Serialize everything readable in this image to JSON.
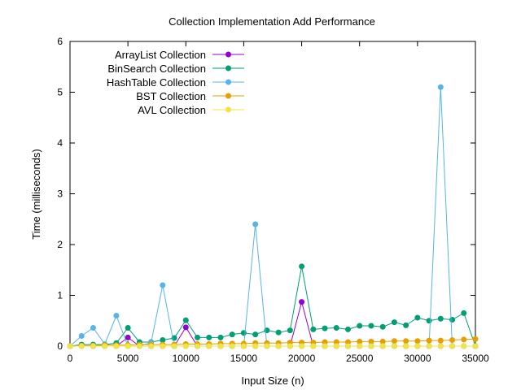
{
  "chart_data": {
    "type": "line",
    "title": "Collection Implementation Add Performance",
    "xlabel": "Input Size (n)",
    "ylabel": "Time (milliseconds)",
    "xlim": [
      0,
      35000
    ],
    "ylim": [
      0,
      6
    ],
    "xticks": [
      0,
      5000,
      10000,
      15000,
      20000,
      25000,
      30000,
      35000
    ],
    "yticks": [
      0,
      1,
      2,
      3,
      4,
      5,
      6
    ],
    "grid": false,
    "legend_position": "top-left",
    "x": [
      0,
      1000,
      2000,
      3000,
      4000,
      5000,
      6000,
      7000,
      8000,
      9000,
      10000,
      11000,
      12000,
      13000,
      14000,
      15000,
      16000,
      17000,
      18000,
      19000,
      20000,
      21000,
      22000,
      23000,
      24000,
      25000,
      26000,
      27000,
      28000,
      29000,
      30000,
      31000,
      32000,
      33000,
      34000,
      35000
    ],
    "series": [
      {
        "name": "ArrayList Collection",
        "color": "#9400d3",
        "values": [
          0,
          0,
          0,
          0,
          0,
          0.17,
          0,
          0,
          0,
          0,
          0.37,
          0,
          0,
          0,
          0,
          0,
          0,
          0,
          0,
          0,
          0.87,
          0,
          0,
          0,
          0,
          0,
          0,
          0,
          0,
          0,
          0,
          0,
          0,
          0,
          0,
          0
        ]
      },
      {
        "name": "BinSearch Collection",
        "color": "#009e73",
        "values": [
          0,
          0.03,
          0.03,
          0.03,
          0.06,
          0.36,
          0.08,
          0.08,
          0.12,
          0.16,
          0.51,
          0.17,
          0.17,
          0.17,
          0.23,
          0.26,
          0.23,
          0.31,
          0.27,
          0.31,
          1.57,
          0.33,
          0.35,
          0.36,
          0.33,
          0.4,
          0.4,
          0.38,
          0.47,
          0.41,
          0.56,
          0.5,
          0.54,
          0.52,
          0.65,
          0
        ]
      },
      {
        "name": "HashTable Collection",
        "color": "#56b4e9",
        "values": [
          0,
          0.2,
          0.36,
          0.04,
          0.6,
          0,
          0,
          0.07,
          1.2,
          0,
          0,
          0,
          0,
          0,
          0,
          0,
          2.4,
          0,
          0,
          0,
          0,
          0,
          0,
          0,
          0,
          0,
          0,
          0,
          0,
          0,
          0,
          0,
          5.1,
          0,
          0,
          0
        ]
      },
      {
        "name": "BST Collection",
        "color": "#e69f00",
        "values": [
          0,
          0.01,
          0.01,
          0.02,
          0.02,
          0.02,
          0.03,
          0.03,
          0.03,
          0.03,
          0.04,
          0.04,
          0.04,
          0.05,
          0.05,
          0.05,
          0.06,
          0.06,
          0.06,
          0.07,
          0.07,
          0.07,
          0.08,
          0.08,
          0.08,
          0.09,
          0.09,
          0.09,
          0.1,
          0.1,
          0.1,
          0.11,
          0.11,
          0.12,
          0.13,
          0.14
        ]
      },
      {
        "name": "AVL Collection",
        "color": "#f0e442",
        "values": [
          0,
          0,
          0,
          0,
          0,
          0,
          0,
          0,
          0,
          0,
          0,
          0,
          0,
          0,
          0,
          0,
          0,
          0,
          0,
          0,
          0,
          0,
          0,
          0,
          0,
          0,
          0,
          0,
          0,
          0,
          0,
          0,
          0,
          0,
          0,
          0
        ]
      }
    ]
  }
}
